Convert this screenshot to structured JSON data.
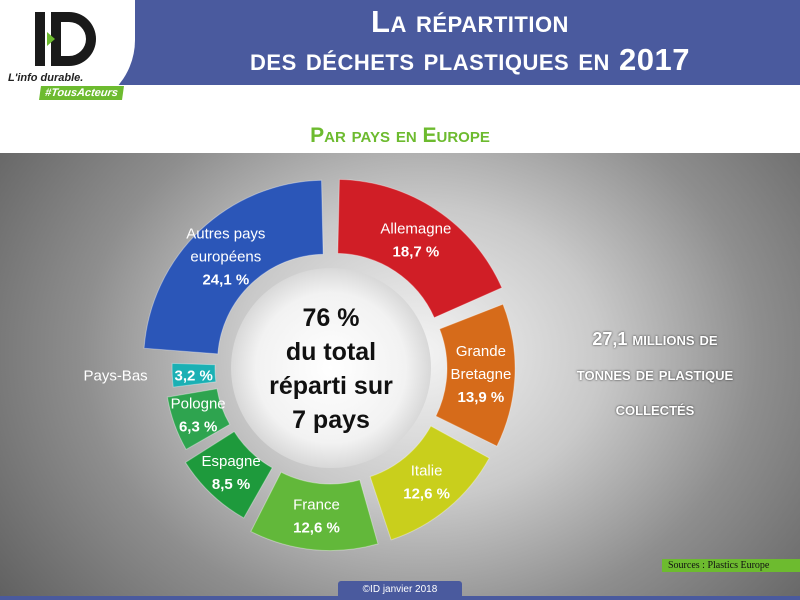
{
  "header": {
    "title_line1": "La répartition",
    "title_line2": "des déchets plastiques en 2017",
    "logo_text": "ID",
    "logo_tagline": "L'info durable.",
    "logo_hashtag": "#TousActeurs"
  },
  "subtitle": "Par pays en Europe",
  "stat": {
    "line1": "27,1 millions de",
    "line2": "tonnes de plastique",
    "line3": "collectés"
  },
  "sources": "Sources : Plastics Europe",
  "copyright": "©ID janvier 2018",
  "colors": {
    "header": "#4a5a9e",
    "accent_green": "#6dbb2f"
  },
  "chart_data": {
    "type": "pie",
    "style": "donut-exploded",
    "unit": "%",
    "center_text": [
      "76 %",
      "du total",
      "réparti sur",
      "7 pays"
    ],
    "slices": [
      {
        "name": "Allemagne",
        "label_lines": [
          "Allemagne"
        ],
        "value": 18.7,
        "value_label": "18,7 %",
        "color": "#d01e26"
      },
      {
        "name": "Grande Bretagne",
        "label_lines": [
          "Grande",
          "Bretagne"
        ],
        "value": 13.9,
        "value_label": "13,9 %",
        "color": "#d66b1a"
      },
      {
        "name": "Italie",
        "label_lines": [
          "Italie"
        ],
        "value": 12.6,
        "value_label": "12,6 %",
        "color": "#c9cf1c"
      },
      {
        "name": "France",
        "label_lines": [
          "France"
        ],
        "value": 12.6,
        "value_label": "12,6 %",
        "color": "#62b83a"
      },
      {
        "name": "Espagne",
        "label_lines": [
          "Espagne"
        ],
        "value": 8.5,
        "value_label": "8,5 %",
        "color": "#1e9a3c"
      },
      {
        "name": "Pologne",
        "label_lines": [
          "Pologne"
        ],
        "value": 6.3,
        "value_label": "6,3 %",
        "color": "#2ea44f"
      },
      {
        "name": "Pays-Bas",
        "label_lines": [
          "Pays-Bas"
        ],
        "value": 3.2,
        "value_label": "3,2 %",
        "color": "#1bb0b4"
      },
      {
        "name": "Autres pays européens",
        "label_lines": [
          "Autres pays",
          "européens"
        ],
        "value": 24.1,
        "value_label": "24,1 %",
        "color": "#2b56b8"
      }
    ]
  }
}
